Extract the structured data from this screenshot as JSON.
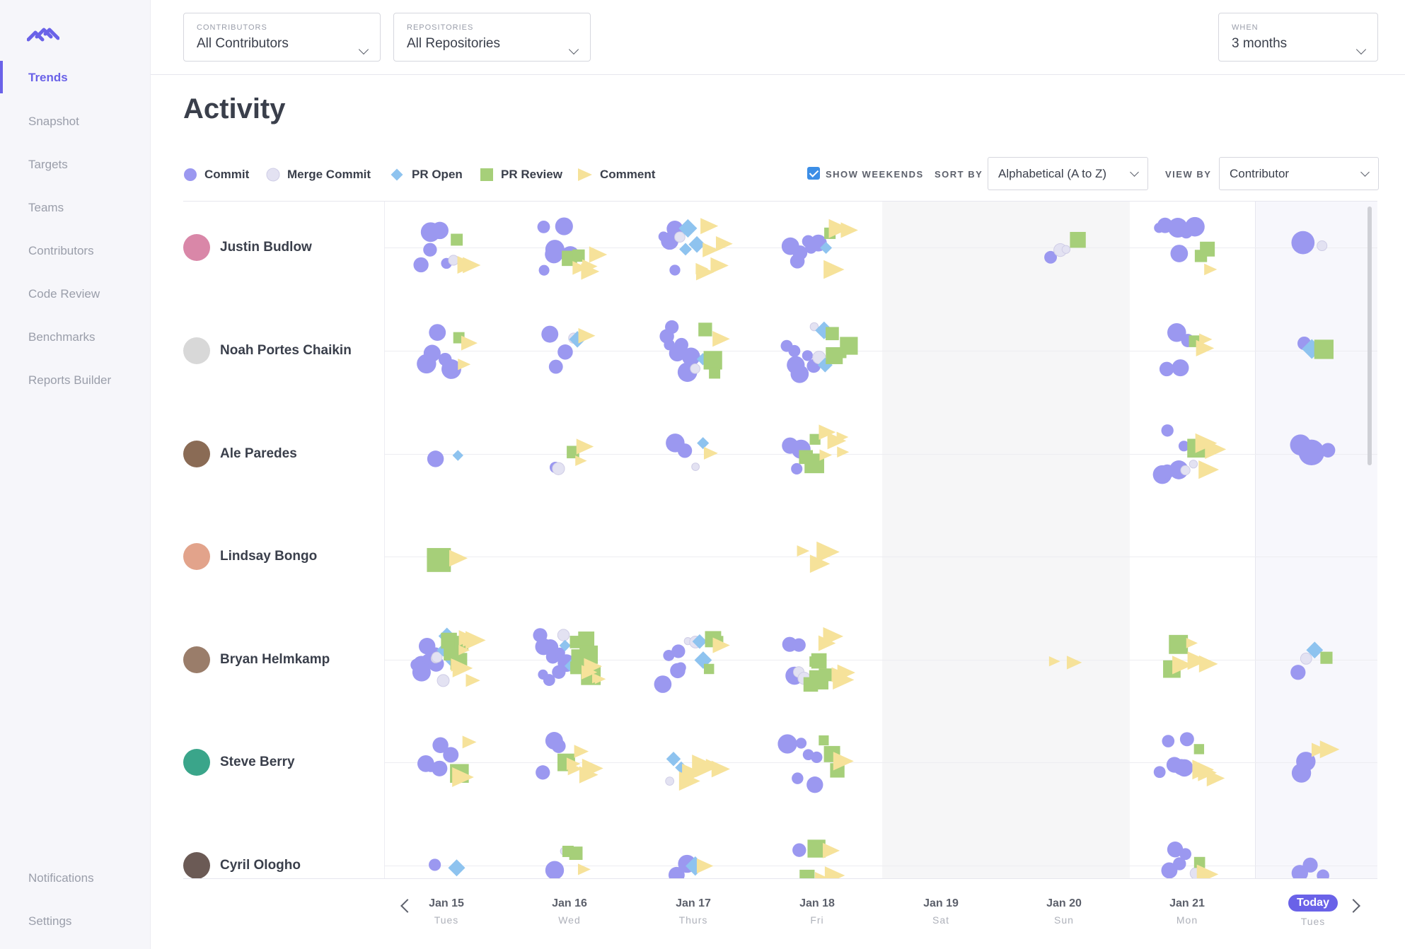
{
  "sidebar": {
    "items": [
      {
        "label": "Trends",
        "active": true
      },
      {
        "label": "Snapshot"
      },
      {
        "label": "Targets"
      },
      {
        "label": "Teams"
      },
      {
        "label": "Contributors"
      },
      {
        "label": "Code Review"
      },
      {
        "label": "Benchmarks"
      },
      {
        "label": "Reports Builder"
      }
    ],
    "bottom_items": [
      {
        "label": "Notifications"
      },
      {
        "label": "Settings"
      }
    ]
  },
  "filters": {
    "contributors": {
      "caption": "CONTRIBUTORS",
      "value": "All Contributors"
    },
    "repositories": {
      "caption": "REPOSITORIES",
      "value": "All Repositories"
    },
    "when": {
      "caption": "WHEN",
      "value": "3 months"
    }
  },
  "page_title": "Activity",
  "legend": {
    "commit": "Commit",
    "merge_commit": "Merge Commit",
    "pr_open": "PR Open",
    "pr_review": "PR Review",
    "comment": "Comment"
  },
  "controls": {
    "show_weekends_label": "SHOW WEEKENDS",
    "show_weekends": true,
    "sort_by_label": "SORT BY",
    "sort_by_value": "Alphabetical (A to Z)",
    "view_by_label": "VIEW BY",
    "view_by_value": "Contributor"
  },
  "colors": {
    "commit": "#9b98f0",
    "merge_commit": "#e3e2f2",
    "pr_open": "#8ec3ef",
    "pr_review": "#a6cf79",
    "comment": "#f6e29a",
    "accent": "#6a62e8"
  },
  "contributors": [
    {
      "name": "Justin Budlow",
      "avatar_color": "#d987a8"
    },
    {
      "name": "Noah Portes Chaikin",
      "avatar_color": "#d8d8d8"
    },
    {
      "name": "Ale Paredes",
      "avatar_color": "#8a6b55"
    },
    {
      "name": "Lindsay Bongo",
      "avatar_color": "#e2a38b"
    },
    {
      "name": "Bryan Helmkamp",
      "avatar_color": "#9a7d6a"
    },
    {
      "name": "Steve Berry",
      "avatar_color": "#3aa58a"
    },
    {
      "name": "Cyril Ologho",
      "avatar_color": "#6b5a55"
    }
  ],
  "days": [
    {
      "date": "Jan 15",
      "weekday": "Tues"
    },
    {
      "date": "Jan 16",
      "weekday": "Wed"
    },
    {
      "date": "Jan 17",
      "weekday": "Thurs"
    },
    {
      "date": "Jan 18",
      "weekday": "Fri"
    },
    {
      "date": "Jan 19",
      "weekday": "Sat",
      "weekend": true
    },
    {
      "date": "Jan 20",
      "weekday": "Sun",
      "weekend": true
    },
    {
      "date": "Jan 21",
      "weekday": "Mon"
    },
    {
      "date": "Today",
      "weekday": "Tues",
      "today": true
    }
  ],
  "activity": [
    [
      {
        "commit": 5,
        "merge_commit": 1,
        "pr_review": 1,
        "comment": 2
      },
      {
        "commit": 6,
        "pr_review": 2,
        "comment": 4
      },
      {
        "commit": 4,
        "merge_commit": 1,
        "pr_open": 3,
        "comment": 6
      },
      {
        "commit": 6,
        "pr_open": 1,
        "pr_review": 1,
        "comment": 3
      },
      {},
      {
        "commit": 1,
        "merge_commit": 2,
        "pr_review": 1
      },
      {
        "commit": 6,
        "pr_review": 2,
        "comment": 1
      },
      {
        "commit": 1,
        "merge_commit": 1
      }
    ],
    [
      {
        "commit": 5,
        "pr_review": 1,
        "comment": 2
      },
      {
        "commit": 3,
        "merge_commit": 1,
        "pr_open": 1,
        "comment": 1
      },
      {
        "commit": 7,
        "merge_commit": 2,
        "pr_open": 1,
        "pr_review": 3,
        "comment": 1
      },
      {
        "commit": 6,
        "merge_commit": 2,
        "pr_open": 2,
        "pr_review": 4
      },
      {},
      {},
      {
        "commit": 4,
        "pr_review": 1,
        "comment": 2
      },
      {
        "commit": 1,
        "pr_open": 1,
        "pr_review": 1
      }
    ],
    [
      {
        "commit": 1,
        "pr_open": 1
      },
      {
        "commit": 1,
        "merge_commit": 1,
        "pr_review": 1,
        "comment": 2
      },
      {
        "commit": 2,
        "merge_commit": 1,
        "pr_open": 1,
        "comment": 1
      },
      {
        "commit": 3,
        "pr_review": 3,
        "comment": 5
      },
      {},
      {},
      {
        "commit": 5,
        "merge_commit": 2,
        "pr_review": 1,
        "comment": 3
      },
      {
        "commit": 3
      }
    ],
    [
      {
        "pr_review": 1,
        "comment": 1
      },
      {},
      {},
      {
        "comment": 3
      },
      {},
      {},
      {},
      {}
    ],
    [
      {
        "commit": 8,
        "merge_commit": 3,
        "pr_open": 3,
        "pr_review": 4,
        "comment": 7
      },
      {
        "commit": 10,
        "merge_commit": 1,
        "pr_open": 3,
        "pr_review": 6,
        "comment": 4
      },
      {
        "commit": 5,
        "merge_commit": 2,
        "pr_open": 2,
        "pr_review": 3,
        "comment": 1
      },
      {
        "commit": 3,
        "merge_commit": 2,
        "pr_review": 5,
        "comment": 5
      },
      {},
      {
        "comment": 2
      },
      {
        "pr_review": 2,
        "comment": 4
      },
      {
        "commit": 1,
        "merge_commit": 1,
        "pr_open": 1,
        "pr_review": 1
      }
    ],
    [
      {
        "commit": 5,
        "pr_review": 1,
        "comment": 2
      },
      {
        "commit": 3,
        "pr_review": 1,
        "comment": 5
      },
      {
        "merge_commit": 1,
        "pr_open": 2,
        "comment": 6
      },
      {
        "commit": 6,
        "pr_review": 3,
        "comment": 1
      },
      {},
      {},
      {
        "commit": 6,
        "pr_review": 1,
        "comment": 3
      },
      {
        "commit": 2,
        "comment": 2
      }
    ],
    [
      {
        "commit": 1,
        "pr_open": 1
      },
      {
        "commit": 1,
        "merge_commit": 1,
        "pr_review": 2,
        "comment": 1
      },
      {
        "commit": 2,
        "pr_open": 1,
        "comment": 1
      },
      {
        "commit": 1,
        "pr_review": 2,
        "comment": 3
      },
      {},
      {},
      {
        "commit": 4,
        "merge_commit": 1,
        "pr_review": 1,
        "comment": 1
      },
      {
        "commit": 3
      }
    ]
  ]
}
